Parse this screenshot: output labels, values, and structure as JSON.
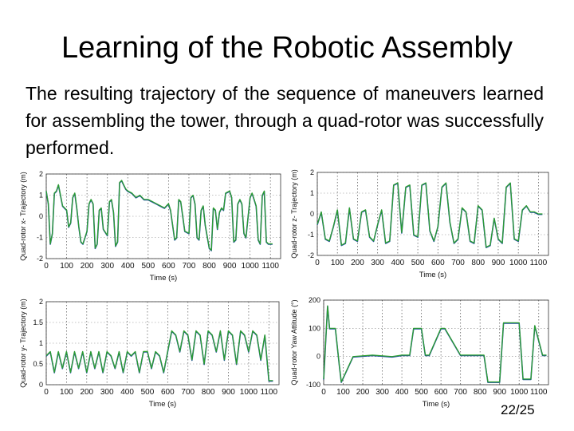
{
  "slide": {
    "title": "Learning of the Robotic Assembly",
    "body": "The resulting trajectory of the sequence of maneuvers learned for assembling the tower, through a quad-rotor was successfully performed.",
    "page_number": "22/25"
  },
  "colors": {
    "actual": "#1f4e9e",
    "desired": "#2ca02c"
  },
  "chart_data": [
    {
      "type": "line",
      "ylabel": "Quad-rotor x- Trajectory (m)",
      "xlabel": "Time (s)",
      "xlim": [
        0,
        1150
      ],
      "ylim": [
        -2,
        2
      ],
      "xticks": [
        0,
        100,
        200,
        300,
        400,
        500,
        600,
        700,
        800,
        900,
        1000,
        1100
      ],
      "yticks": [
        -2,
        -1,
        0,
        1,
        2
      ],
      "x": [
        0,
        10,
        20,
        30,
        40,
        50,
        60,
        70,
        80,
        100,
        110,
        120,
        130,
        140,
        150,
        160,
        170,
        180,
        200,
        210,
        220,
        230,
        240,
        250,
        260,
        270,
        280,
        300,
        310,
        320,
        330,
        340,
        350,
        360,
        370,
        380,
        390,
        400,
        420,
        440,
        460,
        480,
        500,
        520,
        540,
        560,
        580,
        600,
        610,
        620,
        630,
        640,
        650,
        660,
        680,
        700,
        710,
        720,
        730,
        740,
        750,
        760,
        770,
        780,
        800,
        810,
        820,
        830,
        840,
        850,
        860,
        870,
        880,
        900,
        910,
        920,
        930,
        940,
        950,
        960,
        970,
        980,
        1000,
        1010,
        1020,
        1030,
        1040,
        1050,
        1060,
        1070,
        1080,
        1090,
        1100,
        1110
      ],
      "series": [
        {
          "values": [
            1.2,
            0.6,
            -1.3,
            -0.8,
            1.1,
            1.2,
            1.5,
            1.0,
            0.5,
            0.3,
            -0.5,
            -0.3,
            0.9,
            1.1,
            0.4,
            -0.5,
            -1.2,
            -1.3,
            -0.7,
            0.6,
            0.8,
            0.6,
            -1.5,
            -1.3,
            0.3,
            0.4,
            -0.6,
            -0.9,
            0.7,
            0.8,
            0.2,
            -1.4,
            -1.2,
            1.6,
            1.7,
            1.5,
            1.3,
            1.2,
            1.1,
            0.9,
            1.0,
            0.8,
            0.8,
            0.7,
            0.6,
            0.5,
            0.4,
            0.6,
            0.3,
            -0.4,
            -1.1,
            -1.0,
            0.8,
            0.7,
            -0.7,
            -0.8,
            0.9,
            1.0,
            0.6,
            -1.0,
            -1.1,
            0.3,
            0.5,
            -0.4,
            -1.5,
            -1.6,
            0.4,
            0.3,
            -0.6,
            0.2,
            0.4,
            0.3,
            1.1,
            1.2,
            0.9,
            -1.2,
            -1.1,
            0.6,
            0.8,
            0.6,
            -0.8,
            -1.0,
            0.9,
            1.1,
            0.8,
            0.5,
            -1.1,
            -1.3,
            1.0,
            1.2,
            -1.2,
            -1.3,
            -1.3,
            -1.3
          ]
        },
        {
          "values": [
            1.2,
            0.6,
            -1.3,
            -0.8,
            1.1,
            1.2,
            1.5,
            1.0,
            0.5,
            0.3,
            -0.5,
            -0.3,
            0.9,
            1.1,
            0.4,
            -0.5,
            -1.2,
            -1.3,
            -0.7,
            0.6,
            0.8,
            0.6,
            -1.5,
            -1.3,
            0.3,
            0.4,
            -0.6,
            -0.9,
            0.7,
            0.8,
            0.2,
            -1.4,
            -1.2,
            1.6,
            1.7,
            1.5,
            1.3,
            1.2,
            1.1,
            0.9,
            1.0,
            0.8,
            0.8,
            0.7,
            0.6,
            0.5,
            0.4,
            0.6,
            0.3,
            -0.4,
            -1.1,
            -1.0,
            0.8,
            0.7,
            -0.7,
            -0.8,
            0.9,
            1.0,
            0.6,
            -1.0,
            -1.1,
            0.3,
            0.5,
            -0.4,
            -1.5,
            -1.6,
            0.4,
            0.3,
            -0.6,
            0.2,
            0.4,
            0.3,
            1.1,
            1.2,
            0.9,
            -1.2,
            -1.1,
            0.6,
            0.8,
            0.6,
            -0.8,
            -1.0,
            0.9,
            1.1,
            0.8,
            0.5,
            -1.1,
            -1.3,
            1.0,
            1.2,
            -1.2,
            -1.3,
            -1.3,
            -1.3
          ]
        }
      ]
    },
    {
      "type": "line",
      "ylabel": "Quad-rotor z- Trajectory (m)",
      "xlabel": "Time (s)",
      "xlim": [
        0,
        1150
      ],
      "ylim": [
        -2,
        2
      ],
      "xticks": [
        0,
        100,
        200,
        300,
        400,
        500,
        600,
        700,
        800,
        900,
        1000,
        1100
      ],
      "yticks": [
        -2,
        -1,
        0,
        1,
        2
      ],
      "x": [
        0,
        20,
        40,
        60,
        80,
        100,
        120,
        140,
        160,
        180,
        200,
        220,
        240,
        260,
        280,
        300,
        320,
        340,
        360,
        380,
        400,
        420,
        440,
        460,
        480,
        500,
        520,
        540,
        560,
        580,
        600,
        620,
        640,
        660,
        680,
        700,
        720,
        740,
        760,
        780,
        800,
        820,
        840,
        860,
        880,
        900,
        920,
        940,
        960,
        980,
        1000,
        1020,
        1040,
        1060,
        1080,
        1100,
        1120
      ],
      "series": [
        {
          "values": [
            -0.5,
            0.1,
            -1.2,
            -1.3,
            -0.6,
            0.2,
            -1.5,
            -1.4,
            0.3,
            -1.2,
            -1.3,
            0.1,
            0.2,
            -1.1,
            -1.3,
            -0.5,
            0.2,
            -1.4,
            -1.3,
            1.4,
            1.5,
            -0.9,
            1.3,
            1.4,
            -1.0,
            -1.1,
            1.4,
            1.5,
            -0.8,
            -1.3,
            -0.6,
            1.3,
            1.5,
            -0.4,
            -1.4,
            -1.2,
            0.3,
            0.1,
            -1.3,
            -1.4,
            0.4,
            0.2,
            -1.6,
            -1.5,
            -0.2,
            -1.2,
            -1.4,
            1.3,
            1.5,
            -1.2,
            -1.3,
            0.2,
            0.4,
            0.1,
            0.1,
            0.0,
            0.0
          ]
        },
        {
          "values": [
            -0.5,
            0.1,
            -1.2,
            -1.3,
            -0.6,
            0.2,
            -1.5,
            -1.4,
            0.3,
            -1.2,
            -1.3,
            0.1,
            0.2,
            -1.1,
            -1.3,
            -0.5,
            0.2,
            -1.4,
            -1.3,
            1.4,
            1.5,
            -0.9,
            1.3,
            1.4,
            -1.0,
            -1.1,
            1.4,
            1.5,
            -0.8,
            -1.3,
            -0.6,
            1.3,
            1.5,
            -0.4,
            -1.4,
            -1.2,
            0.3,
            0.1,
            -1.3,
            -1.4,
            0.4,
            0.2,
            -1.6,
            -1.5,
            -0.2,
            -1.2,
            -1.4,
            1.3,
            1.5,
            -1.2,
            -1.3,
            0.2,
            0.4,
            0.1,
            0.1,
            0.0,
            0.0
          ]
        }
      ]
    },
    {
      "type": "line",
      "ylabel": "Quad-rotor y- Trajectory (m)",
      "xlabel": "Time (s)",
      "xlim": [
        0,
        1150
      ],
      "ylim": [
        0,
        2
      ],
      "xticks": [
        0,
        100,
        200,
        300,
        400,
        500,
        600,
        700,
        800,
        900,
        1000,
        1100
      ],
      "yticks": [
        0,
        0.5,
        1,
        1.5,
        2
      ],
      "ytick_labels": [
        "0",
        "0.5",
        "1",
        "1.5",
        "2"
      ],
      "x": [
        0,
        20,
        40,
        60,
        80,
        100,
        120,
        140,
        160,
        180,
        200,
        220,
        240,
        260,
        280,
        300,
        320,
        340,
        360,
        380,
        400,
        420,
        440,
        460,
        480,
        500,
        520,
        540,
        560,
        580,
        600,
        620,
        640,
        660,
        680,
        700,
        720,
        740,
        760,
        780,
        800,
        820,
        840,
        860,
        880,
        900,
        920,
        940,
        960,
        980,
        1000,
        1020,
        1040,
        1060,
        1080,
        1100,
        1120
      ],
      "series": [
        {
          "values": [
            0.7,
            0.8,
            0.3,
            0.8,
            0.4,
            0.8,
            0.3,
            0.8,
            0.4,
            0.8,
            0.3,
            0.8,
            0.4,
            0.8,
            0.3,
            0.8,
            0.7,
            0.4,
            0.8,
            0.3,
            0.8,
            0.7,
            0.8,
            0.3,
            0.8,
            0.8,
            0.4,
            0.8,
            0.7,
            0.3,
            0.8,
            1.3,
            1.2,
            0.8,
            1.3,
            1.2,
            0.6,
            1.3,
            1.2,
            0.5,
            1.3,
            1.2,
            0.8,
            1.3,
            0.6,
            1.3,
            1.2,
            0.5,
            1.3,
            1.2,
            0.8,
            1.3,
            1.2,
            0.6,
            1.2,
            0.1,
            0.1
          ]
        },
        {
          "values": [
            0.7,
            0.8,
            0.3,
            0.8,
            0.4,
            0.8,
            0.3,
            0.8,
            0.4,
            0.8,
            0.3,
            0.8,
            0.4,
            0.8,
            0.3,
            0.8,
            0.7,
            0.4,
            0.8,
            0.3,
            0.8,
            0.7,
            0.8,
            0.3,
            0.8,
            0.8,
            0.4,
            0.8,
            0.7,
            0.3,
            0.8,
            1.3,
            1.2,
            0.8,
            1.3,
            1.2,
            0.6,
            1.3,
            1.2,
            0.5,
            1.3,
            1.2,
            0.8,
            1.3,
            0.6,
            1.3,
            1.2,
            0.5,
            1.3,
            1.2,
            0.8,
            1.3,
            1.2,
            0.6,
            1.2,
            0.1,
            0.1
          ]
        }
      ]
    },
    {
      "type": "line",
      "ylabel": "Quad-rotor Yaw Attitude (°)",
      "xlabel": "Time (s)",
      "xlim": [
        0,
        1150
      ],
      "ylim": [
        -100,
        200
      ],
      "xticks": [
        0,
        100,
        200,
        300,
        400,
        500,
        600,
        700,
        800,
        900,
        1000,
        1100
      ],
      "yticks": [
        -100,
        0,
        100,
        200
      ],
      "x": [
        0,
        20,
        30,
        60,
        80,
        90,
        150,
        250,
        350,
        400,
        440,
        460,
        500,
        520,
        540,
        600,
        620,
        700,
        720,
        760,
        820,
        840,
        900,
        920,
        1000,
        1020,
        1060,
        1080,
        1120,
        1140
      ],
      "series": [
        {
          "values": [
            -80,
            180,
            100,
            100,
            -30,
            -90,
            0,
            5,
            0,
            5,
            5,
            100,
            100,
            5,
            5,
            100,
            100,
            5,
            5,
            5,
            5,
            -90,
            -90,
            120,
            120,
            -80,
            -80,
            110,
            5,
            5
          ]
        },
        {
          "values": [
            -80,
            180,
            100,
            100,
            -30,
            -90,
            0,
            5,
            0,
            5,
            5,
            100,
            100,
            5,
            5,
            100,
            100,
            5,
            5,
            5,
            5,
            -90,
            -90,
            120,
            120,
            -80,
            -80,
            110,
            5,
            5
          ]
        }
      ]
    }
  ]
}
